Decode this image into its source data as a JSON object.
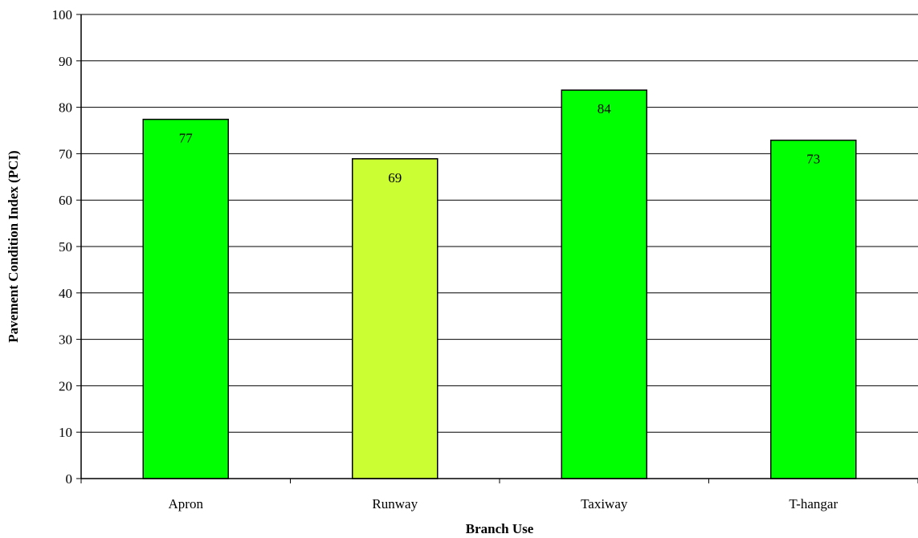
{
  "chart_data": {
    "type": "bar",
    "title": "",
    "xlabel": "Branch Use",
    "ylabel": "Pavement Condition Index (PCI)",
    "categories": [
      "Apron",
      "Runway",
      "Taxiway",
      "T-hangar"
    ],
    "values": [
      77.4,
      68.9,
      83.7,
      72.9
    ],
    "data_labels": [
      "77",
      "69",
      "84",
      "73"
    ],
    "bar_colors": [
      "#00ff00",
      "#ccff33",
      "#00ff00",
      "#00ff00"
    ],
    "ylim": [
      0,
      100
    ],
    "yticks": [
      0,
      10,
      20,
      30,
      40,
      50,
      60,
      70,
      80,
      90,
      100
    ],
    "grid": "horizontal",
    "legend": "none"
  }
}
